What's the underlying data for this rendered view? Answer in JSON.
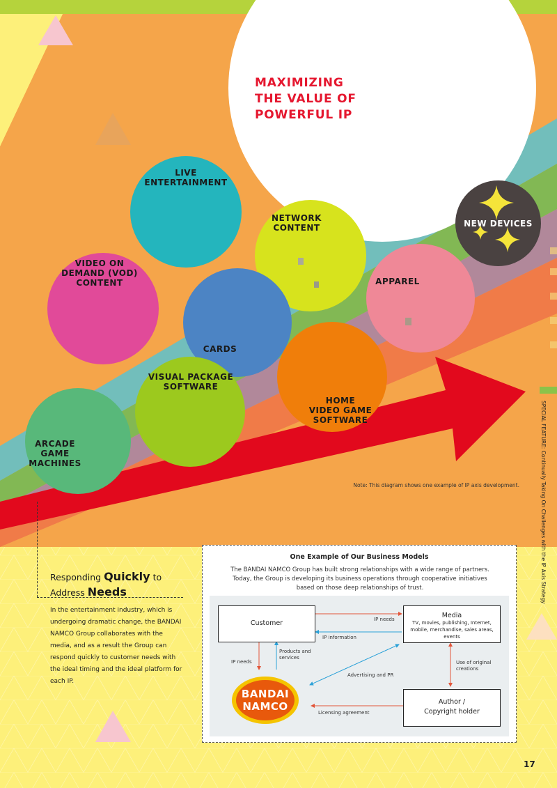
{
  "headline": "MAXIMIZING\nTHE VALUE OF\nPOWERFUL IP",
  "circles": {
    "live": "LIVE\nENTERTAINMENT",
    "network": "NETWORK\nCONTENT",
    "vod": "VIDEO ON\nDEMAND (VOD)\nCONTENT",
    "apparel": "APPAREL",
    "new_devices": "NEW DEVICES",
    "cards": "CARDS",
    "visual": "VISUAL PACKAGE\nSOFTWARE",
    "home": "HOME\nVIDEO GAME\nSOFTWARE",
    "arcade": "ARCADE\nGAME\nMACHINES"
  },
  "note": "Note: This diagram shows one example of IP axis development.",
  "side_text": "SPECIAL FEATURE: Continually Taking On Challenges with the IP Axis Strategy",
  "page_number": "17",
  "lead": {
    "line1_pre": "Responding ",
    "line1_bold": "Quickly",
    "line1_post": " to",
    "line2_pre": "Address ",
    "line2_bold": "Needs"
  },
  "body_text": "In the entertainment industry, which is undergoing dramatic change, the BANDAI NAMCO Group collaborates with the media, and as a result the Group can respond quickly to customer needs with the ideal timing and the ideal platform for each IP.",
  "model": {
    "title": "One Example of Our Business Models",
    "description": "The BANDAI NAMCO Group has built strong relationships with a wide range of partners. Today, the Group is developing its business operations through cooperative initiatives based on those deep relationships of trust.",
    "customer": "Customer",
    "media_title": "Media",
    "media_sub": "TV, movies, publishing, Internet, mobile, merchandise, sales areas, events",
    "author": "Author /\nCopyright holder",
    "labels": {
      "ip_needs_top": "IP needs",
      "ip_information": "IP information",
      "ip_needs_left": "IP needs",
      "products_services": "Products and\nservices",
      "advertising": "Advertising and PR",
      "use_original": "Use of original\ncreations",
      "licensing": "Licensing agreement"
    },
    "logo_line1": "BANDAI",
    "logo_line2": "NAMCO"
  }
}
